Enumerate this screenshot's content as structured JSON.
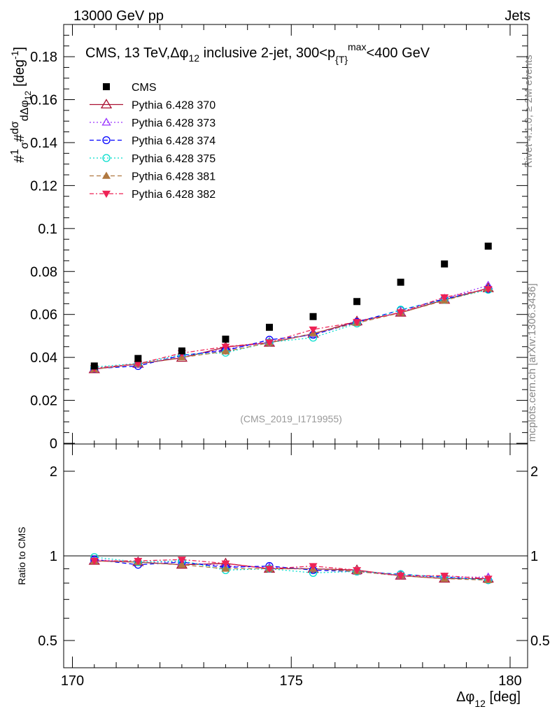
{
  "chart_data": {
    "type": "scatter",
    "header_left": "13000 GeV pp",
    "header_right": "Jets",
    "title": "CMS, 13 TeV, Δφ12 inclusive 2-jet, 300<pT max<400 GeV",
    "title_parts": {
      "a": "CMS, 13 TeV,",
      "b": "Δφ",
      "c": "12",
      "d": " inclusive 2-jet, 300<p",
      "e": "{T}",
      "f": "max",
      "g": "<400 GeV"
    },
    "ylabel": "1/σ dσ/dΔφ12 [deg-1]",
    "ylabel_parts": {
      "a": "#",
      "b": "1",
      "c": "σ",
      "d": "#",
      "e": "dσ",
      "f": "dΔφ",
      "g": "12",
      "h": "[deg",
      "i": "-1",
      "j": "]"
    },
    "xlabel_parts": {
      "a": "Δφ",
      "b": "12",
      "c": " [deg]"
    },
    "ratio_ylabel": "Ratio to CMS",
    "side_label_top": "Rivet 4.1.0, ≥ 2M events",
    "side_label_bottom": "mcplots.cern.ch [arXiv:1306.3436]",
    "analysis_id": "(CMS_2019_I1719955)",
    "xlim": [
      169.8,
      180.4
    ],
    "ylim": [
      0,
      0.195
    ],
    "ratio_ylim": [
      0.4,
      2.5
    ],
    "ratio_scale": "log",
    "x_ticks": [
      "170",
      "175",
      "180"
    ],
    "y_ticks": [
      "0",
      "0.02",
      "0.04",
      "0.06",
      "0.08",
      "0.1",
      "0.12",
      "0.14",
      "0.16",
      "0.18"
    ],
    "ratio_ticks": [
      "0.5",
      "1",
      "2"
    ],
    "legend_position": "top-left",
    "x": [
      170.5,
      171.5,
      172.5,
      173.5,
      174.5,
      175.5,
      176.5,
      177.5,
      178.5,
      179.5
    ],
    "data": {
      "name": "CMS",
      "color": "#000000",
      "values": [
        0.036,
        0.0395,
        0.043,
        0.0485,
        0.054,
        0.059,
        0.066,
        0.075,
        0.0835,
        0.0918
      ]
    },
    "series": [
      {
        "name": "Pythia 6.428 370",
        "color": "#aa1133",
        "marker": "open-triangle",
        "dash": "",
        "values": [
          0.0345,
          0.037,
          0.0398,
          0.0448,
          0.0468,
          0.051,
          0.0568,
          0.0608,
          0.0668,
          0.0722
        ],
        "ratio": [
          0.96,
          0.95,
          0.93,
          0.94,
          0.9,
          0.9,
          0.89,
          0.85,
          0.83,
          0.83
        ]
      },
      {
        "name": "Pythia 6.428 373",
        "color": "#9933ff",
        "marker": "open-triangle-small",
        "dash": "2,3",
        "values": [
          0.0348,
          0.0368,
          0.0405,
          0.0438,
          0.0472,
          0.0508,
          0.0562,
          0.061,
          0.0675,
          0.0735
        ],
        "ratio": [
          0.97,
          0.95,
          0.95,
          0.92,
          0.91,
          0.9,
          0.88,
          0.85,
          0.84,
          0.84
        ]
      },
      {
        "name": "Pythia 6.428 374",
        "color": "#0000ff",
        "marker": "open-circle",
        "dash": "6,4",
        "values": [
          0.0348,
          0.036,
          0.041,
          0.0432,
          0.0482,
          0.0505,
          0.0565,
          0.062,
          0.0672,
          0.0718
        ],
        "ratio": [
          0.97,
          0.93,
          0.95,
          0.91,
          0.92,
          0.89,
          0.88,
          0.86,
          0.84,
          0.82
        ]
      },
      {
        "name": "Pythia 6.428 375",
        "color": "#00ddcc",
        "marker": "open-circle",
        "dash": "2,3",
        "values": [
          0.0355,
          0.0372,
          0.0412,
          0.0422,
          0.047,
          0.0492,
          0.0558,
          0.0622,
          0.0668,
          0.0715
        ],
        "ratio": [
          0.99,
          0.95,
          0.96,
          0.89,
          0.9,
          0.87,
          0.88,
          0.86,
          0.84,
          0.82
        ]
      },
      {
        "name": "Pythia 6.428 381",
        "color": "#b07840",
        "marker": "filled-triangle",
        "dash": "6,4",
        "values": [
          0.0345,
          0.037,
          0.04,
          0.0428,
          0.0468,
          0.0512,
          0.056,
          0.0608,
          0.0665,
          0.072
        ],
        "ratio": [
          0.96,
          0.95,
          0.93,
          0.9,
          0.9,
          0.9,
          0.88,
          0.85,
          0.83,
          0.82
        ]
      },
      {
        "name": "Pythia 6.428 382",
        "color": "#ee2255",
        "marker": "filled-inverted-triangle",
        "dash": "6,3,2,3",
        "values": [
          0.035,
          0.037,
          0.042,
          0.045,
          0.047,
          0.053,
          0.0565,
          0.061,
          0.068,
          0.0718
        ],
        "ratio": [
          0.96,
          0.96,
          0.97,
          0.94,
          0.9,
          0.92,
          0.89,
          0.85,
          0.85,
          0.83
        ]
      }
    ]
  }
}
